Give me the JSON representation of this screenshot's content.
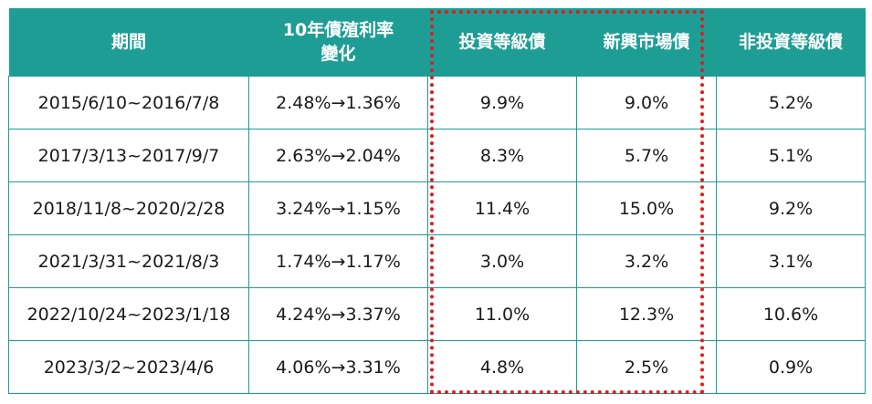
{
  "headers": {
    "period": "期間",
    "yield_change": "10年債殖利率變化",
    "yield_change_line1": "10年債殖利率",
    "yield_change_line2": "變化",
    "investment_grade": "投資等級債",
    "emerging_market": "新興市場債",
    "high_yield": "非投資等級債"
  },
  "rows": [
    {
      "period": "2015/6/10~2016/7/8",
      "yield": "2.48%→1.36%",
      "ig": "9.9%",
      "em": "9.0%",
      "hy": "5.2%"
    },
    {
      "period": "2017/3/13~2017/9/7",
      "yield": "2.63%→2.04%",
      "ig": "8.3%",
      "em": "5.7%",
      "hy": "5.1%"
    },
    {
      "period": "2018/11/8~2020/2/28",
      "yield": "3.24%→1.15%",
      "ig": "11.4%",
      "em": "15.0%",
      "hy": "9.2%"
    },
    {
      "period": "2021/3/31~2021/8/3",
      "yield": "1.74%→1.17%",
      "ig": "3.0%",
      "em": "3.2%",
      "hy": "3.1%"
    },
    {
      "period": "2022/10/24~2023/1/18",
      "yield": "4.24%→3.37%",
      "ig": "11.0%",
      "em": "12.3%",
      "hy": "10.6%"
    },
    {
      "period": "2023/3/2~2023/4/6",
      "yield": "4.06%→3.31%",
      "ig": "4.8%",
      "em": "2.5%",
      "hy": "0.9%"
    }
  ],
  "colors": {
    "header_bg": "#1e9d95",
    "highlight": "#e21b1b"
  }
}
